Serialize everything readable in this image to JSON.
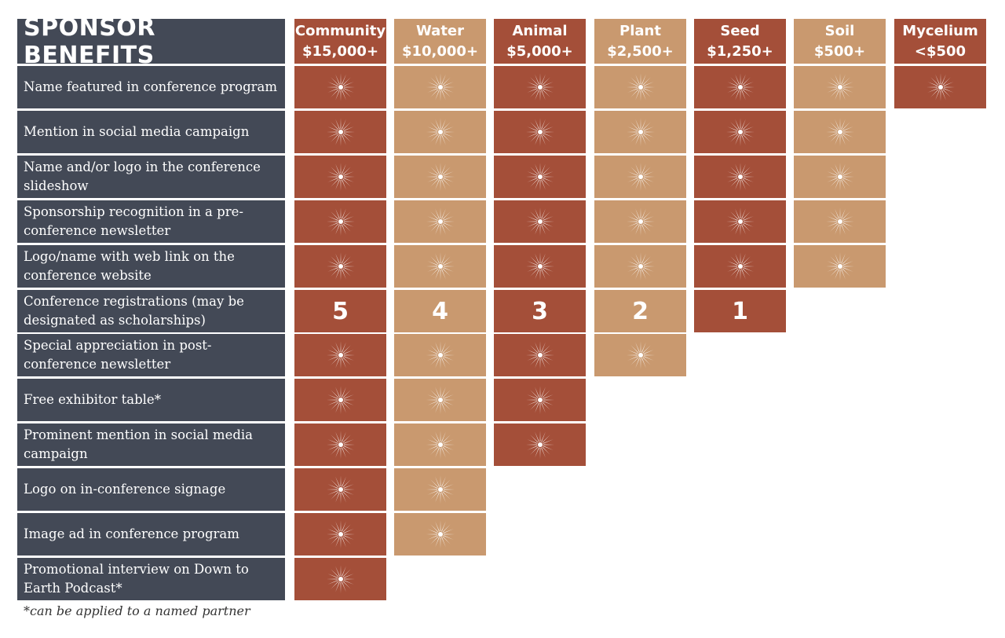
{
  "title": "SPONSOR BENEFITS",
  "colors": {
    "label_bg": "#434956",
    "dark_cell": "#a44f39",
    "light_cell": "#c9996f"
  },
  "icon": "sunburst-icon",
  "tiers": [
    {
      "name": "Community",
      "amount": "$15,000+",
      "shade": "dark"
    },
    {
      "name": "Water",
      "amount": "$10,000+",
      "shade": "light"
    },
    {
      "name": "Animal",
      "amount": "$5,000+",
      "shade": "dark"
    },
    {
      "name": "Plant",
      "amount": "$2,500+",
      "shade": "light"
    },
    {
      "name": "Seed",
      "amount": "$1,250+",
      "shade": "dark"
    },
    {
      "name": "Soil",
      "amount": "$500+",
      "shade": "light"
    },
    {
      "name": "Mycelium",
      "amount": "<$500",
      "shade": "dark"
    }
  ],
  "benefits": [
    {
      "label": "Name featured in conference program",
      "cells": [
        "icon",
        "icon",
        "icon",
        "icon",
        "icon",
        "icon",
        "icon"
      ]
    },
    {
      "label": "Mention in social media campaign",
      "cells": [
        "icon",
        "icon",
        "icon",
        "icon",
        "icon",
        "icon"
      ]
    },
    {
      "label": "Name and/or logo in the conference slideshow",
      "cells": [
        "icon",
        "icon",
        "icon",
        "icon",
        "icon",
        "icon"
      ]
    },
    {
      "label": "Sponsorship recognition in a pre-conference newsletter",
      "cells": [
        "icon",
        "icon",
        "icon",
        "icon",
        "icon",
        "icon"
      ]
    },
    {
      "label": "Logo/name with web link on the conference website",
      "cells": [
        "icon",
        "icon",
        "icon",
        "icon",
        "icon",
        "icon"
      ]
    },
    {
      "label": "Conference registrations (may be designated as scholarships)",
      "cells": [
        "5",
        "4",
        "3",
        "2",
        "1"
      ]
    },
    {
      "label": "Special appreciation in post-conference newsletter",
      "cells": [
        "icon",
        "icon",
        "icon",
        "icon"
      ]
    },
    {
      "label": "Free exhibitor table*",
      "cells": [
        "icon",
        "icon",
        "icon"
      ]
    },
    {
      "label": "Prominent mention in social media campaign",
      "cells": [
        "icon",
        "icon",
        "icon"
      ]
    },
    {
      "label": "Logo on in-conference signage",
      "cells": [
        "icon",
        "icon"
      ]
    },
    {
      "label": "Image ad in conference program",
      "cells": [
        "icon",
        "icon"
      ]
    },
    {
      "label": "Promotional interview on Down to Earth Podcast*",
      "cells": [
        "icon"
      ]
    }
  ],
  "footnote": "*can be applied to a named partner"
}
